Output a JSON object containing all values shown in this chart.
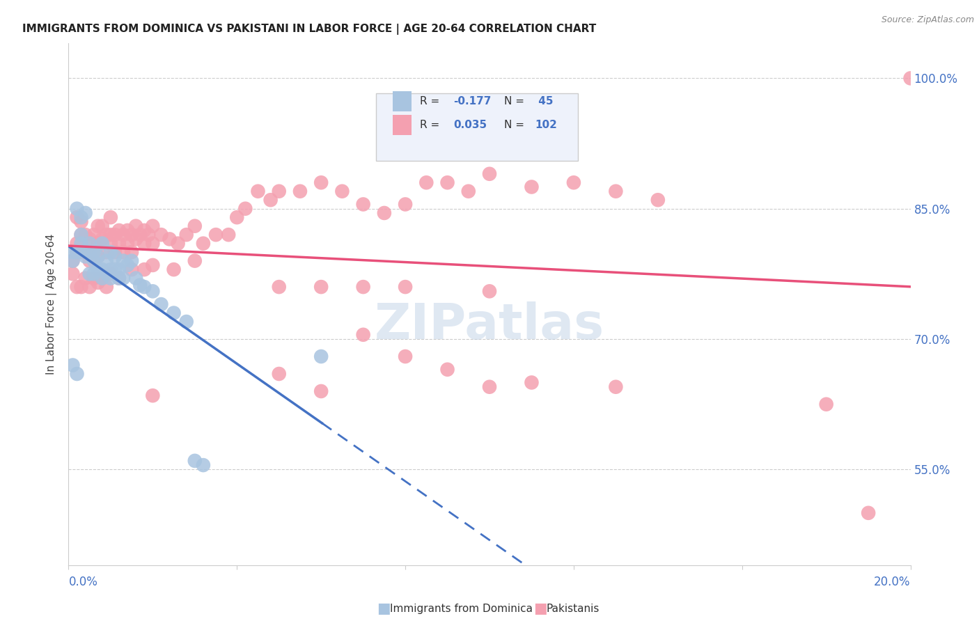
{
  "title": "IMMIGRANTS FROM DOMINICA VS PAKISTANI IN LABOR FORCE | AGE 20-64 CORRELATION CHART",
  "source": "Source: ZipAtlas.com",
  "ylabel": "In Labor Force | Age 20-64",
  "right_yticks": [
    "100.0%",
    "85.0%",
    "70.0%",
    "55.0%"
  ],
  "right_ytick_values": [
    1.0,
    0.85,
    0.7,
    0.55
  ],
  "xlim": [
    0.0,
    0.2
  ],
  "ylim": [
    0.44,
    1.04
  ],
  "dominica_R": -0.177,
  "dominica_N": 45,
  "pakistani_R": 0.035,
  "pakistani_N": 102,
  "dominica_color": "#a8c4e0",
  "pakistani_color": "#f4a0b0",
  "dominica_line_color": "#4472c4",
  "pakistani_line_color": "#e8507a",
  "watermark": "ZIPatlas",
  "title_color": "#222222",
  "axis_label_color": "#4472c4",
  "grid_color": "#cccccc",
  "legend_face": "#eef2fb",
  "legend_edge": "#cccccc",
  "dominica_x": [
    0.001,
    0.001,
    0.002,
    0.002,
    0.003,
    0.003,
    0.003,
    0.004,
    0.004,
    0.005,
    0.005,
    0.005,
    0.006,
    0.006,
    0.006,
    0.007,
    0.007,
    0.008,
    0.008,
    0.008,
    0.009,
    0.009,
    0.01,
    0.01,
    0.01,
    0.011,
    0.011,
    0.012,
    0.012,
    0.013,
    0.013,
    0.014,
    0.015,
    0.016,
    0.017,
    0.018,
    0.02,
    0.022,
    0.025,
    0.028,
    0.03,
    0.032,
    0.06,
    0.002,
    0.001
  ],
  "dominica_y": [
    0.8,
    0.79,
    0.85,
    0.8,
    0.84,
    0.82,
    0.81,
    0.845,
    0.795,
    0.81,
    0.8,
    0.775,
    0.8,
    0.79,
    0.775,
    0.795,
    0.78,
    0.81,
    0.78,
    0.77,
    0.79,
    0.775,
    0.8,
    0.78,
    0.77,
    0.795,
    0.78,
    0.78,
    0.77,
    0.79,
    0.77,
    0.785,
    0.79,
    0.77,
    0.762,
    0.76,
    0.755,
    0.74,
    0.73,
    0.72,
    0.56,
    0.555,
    0.68,
    0.66,
    0.67
  ],
  "pakistani_x": [
    0.001,
    0.001,
    0.002,
    0.002,
    0.002,
    0.003,
    0.003,
    0.003,
    0.004,
    0.004,
    0.005,
    0.005,
    0.005,
    0.006,
    0.006,
    0.007,
    0.007,
    0.007,
    0.008,
    0.008,
    0.009,
    0.009,
    0.01,
    0.01,
    0.01,
    0.011,
    0.011,
    0.012,
    0.012,
    0.013,
    0.013,
    0.014,
    0.014,
    0.015,
    0.015,
    0.016,
    0.016,
    0.017,
    0.018,
    0.018,
    0.019,
    0.02,
    0.02,
    0.022,
    0.024,
    0.026,
    0.028,
    0.03,
    0.032,
    0.035,
    0.038,
    0.04,
    0.042,
    0.045,
    0.048,
    0.05,
    0.055,
    0.06,
    0.065,
    0.07,
    0.075,
    0.08,
    0.085,
    0.09,
    0.095,
    0.1,
    0.11,
    0.12,
    0.13,
    0.14,
    0.002,
    0.003,
    0.004,
    0.005,
    0.006,
    0.007,
    0.008,
    0.009,
    0.01,
    0.012,
    0.015,
    0.018,
    0.02,
    0.025,
    0.03,
    0.05,
    0.06,
    0.07,
    0.08,
    0.1,
    0.05,
    0.06,
    0.07,
    0.08,
    0.09,
    0.1,
    0.11,
    0.13,
    0.18,
    0.19,
    0.2,
    0.02
  ],
  "pakistani_y": [
    0.79,
    0.775,
    0.84,
    0.81,
    0.8,
    0.835,
    0.82,
    0.8,
    0.82,
    0.8,
    0.815,
    0.8,
    0.79,
    0.82,
    0.8,
    0.83,
    0.81,
    0.795,
    0.83,
    0.815,
    0.82,
    0.8,
    0.84,
    0.82,
    0.81,
    0.82,
    0.8,
    0.825,
    0.81,
    0.82,
    0.8,
    0.825,
    0.81,
    0.82,
    0.8,
    0.83,
    0.815,
    0.82,
    0.825,
    0.81,
    0.82,
    0.83,
    0.81,
    0.82,
    0.815,
    0.81,
    0.82,
    0.83,
    0.81,
    0.82,
    0.82,
    0.84,
    0.85,
    0.87,
    0.86,
    0.87,
    0.87,
    0.88,
    0.87,
    0.855,
    0.845,
    0.855,
    0.88,
    0.88,
    0.87,
    0.89,
    0.875,
    0.88,
    0.87,
    0.86,
    0.76,
    0.76,
    0.77,
    0.76,
    0.77,
    0.765,
    0.77,
    0.76,
    0.775,
    0.77,
    0.78,
    0.78,
    0.785,
    0.78,
    0.79,
    0.76,
    0.76,
    0.76,
    0.76,
    0.755,
    0.66,
    0.64,
    0.705,
    0.68,
    0.665,
    0.645,
    0.65,
    0.645,
    0.625,
    0.5,
    1.0,
    0.635
  ]
}
